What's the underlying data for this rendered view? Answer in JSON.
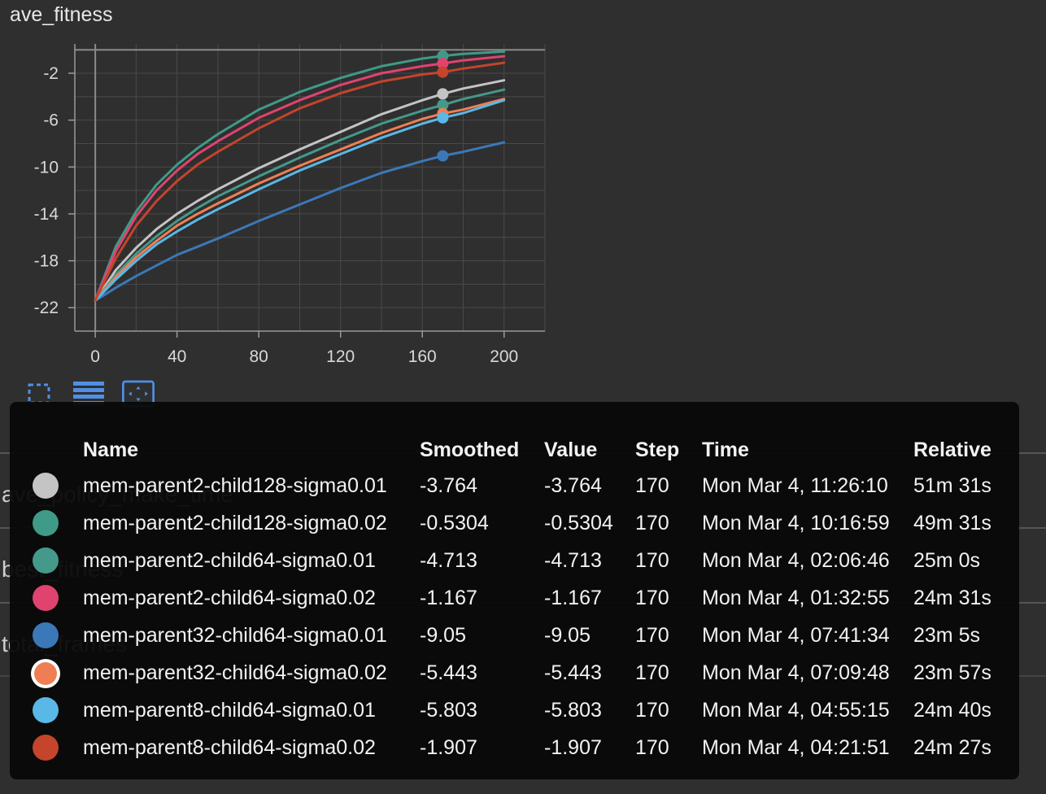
{
  "card": {
    "title": "ave_fitness"
  },
  "background_cards": [
    {
      "label": "ave_policy_make_time"
    },
    {
      "label": "best_fitness"
    },
    {
      "label": "total_frames"
    }
  ],
  "toolbar": {
    "fullscreen_icon": "fullscreen-icon",
    "log_scale_icon": "menu-lines-icon",
    "fit_domain_icon": "fit-domain-icon"
  },
  "table": {
    "headers": {
      "name": "Name",
      "smoothed": "Smoothed",
      "value": "Value",
      "step": "Step",
      "time": "Time",
      "relative": "Relative"
    },
    "rows": [
      {
        "color": "#c4c4c4",
        "name": "mem-parent2-child128-sigma0.01",
        "smoothed": "-3.764",
        "value": "-3.764",
        "step": "170",
        "time": "Mon Mar 4, 11:26:10",
        "relative": "51m 31s"
      },
      {
        "color": "#3f9a87",
        "name": "mem-parent2-child128-sigma0.02",
        "smoothed": "-0.5304",
        "value": "-0.5304",
        "step": "170",
        "time": "Mon Mar 4, 10:16:59",
        "relative": "49m 31s"
      },
      {
        "color": "#44998a",
        "name": "mem-parent2-child64-sigma0.01",
        "smoothed": "-4.713",
        "value": "-4.713",
        "step": "170",
        "time": "Mon Mar 4, 02:06:46",
        "relative": "25m 0s"
      },
      {
        "color": "#e0436f",
        "name": "mem-parent2-child64-sigma0.02",
        "smoothed": "-1.167",
        "value": "-1.167",
        "step": "170",
        "time": "Mon Mar 4, 01:32:55",
        "relative": "24m 31s"
      },
      {
        "color": "#3b78b8",
        "name": "mem-parent32-child64-sigma0.01",
        "smoothed": "-9.05",
        "value": "-9.05",
        "step": "170",
        "time": "Mon Mar 4, 07:41:34",
        "relative": "23m 5s"
      },
      {
        "color": "#f07e55",
        "name": "mem-parent32-child64-sigma0.02",
        "smoothed": "-5.443",
        "value": "-5.443",
        "step": "170",
        "time": "Mon Mar 4, 07:09:48",
        "relative": "23m 57s",
        "selected": true
      },
      {
        "color": "#5ab8e6",
        "name": "mem-parent8-child64-sigma0.01",
        "smoothed": "-5.803",
        "value": "-5.803",
        "step": "170",
        "time": "Mon Mar 4, 04:55:15",
        "relative": "24m 40s"
      },
      {
        "color": "#c4442c",
        "name": "mem-parent8-child64-sigma0.02",
        "smoothed": "-1.907",
        "value": "-1.907",
        "step": "170",
        "time": "Mon Mar 4, 04:21:51",
        "relative": "24m 27s"
      }
    ]
  },
  "chart_data": {
    "type": "line",
    "title": "ave_fitness",
    "xlabel": "",
    "ylabel": "",
    "xlim": [
      -10,
      220
    ],
    "ylim": [
      -24,
      0.5
    ],
    "x_ticks": [
      0,
      40,
      80,
      120,
      160,
      200
    ],
    "y_ticks": [
      -2,
      -6,
      -10,
      -14,
      -18,
      -22
    ],
    "grid": true,
    "highlight_step": 170,
    "x": [
      0,
      10,
      20,
      30,
      40,
      50,
      60,
      80,
      100,
      120,
      140,
      160,
      170,
      180,
      200
    ],
    "series": [
      {
        "color": "#c4c4c4",
        "values": [
          -21.4,
          -18.8,
          -16.9,
          -15.3,
          -14.0,
          -12.9,
          -11.9,
          -10.1,
          -8.5,
          -7.0,
          -5.5,
          -4.3,
          -3.764,
          -3.3,
          -2.6
        ]
      },
      {
        "color": "#3f9a87",
        "values": [
          -21.4,
          -16.8,
          -13.8,
          -11.5,
          -9.8,
          -8.4,
          -7.2,
          -5.1,
          -3.6,
          -2.4,
          -1.4,
          -0.75,
          -0.5304,
          -0.35,
          -0.15
        ]
      },
      {
        "color": "#44998a",
        "values": [
          -21.4,
          -19.2,
          -17.4,
          -15.9,
          -14.6,
          -13.5,
          -12.5,
          -10.8,
          -9.2,
          -7.7,
          -6.3,
          -5.2,
          -4.713,
          -4.2,
          -3.4
        ]
      },
      {
        "color": "#e0436f",
        "values": [
          -21.4,
          -17.2,
          -14.2,
          -12.0,
          -10.3,
          -8.9,
          -7.8,
          -5.8,
          -4.3,
          -3.0,
          -2.0,
          -1.4,
          -1.167,
          -0.9,
          -0.55
        ]
      },
      {
        "color": "#3b78b8",
        "values": [
          -21.4,
          -20.3,
          -19.3,
          -18.4,
          -17.5,
          -16.8,
          -16.1,
          -14.6,
          -13.2,
          -11.8,
          -10.5,
          -9.5,
          -9.05,
          -8.7,
          -7.9
        ]
      },
      {
        "color": "#f07e55",
        "values": [
          -21.4,
          -19.4,
          -17.7,
          -16.3,
          -15.0,
          -14.0,
          -13.1,
          -11.4,
          -9.9,
          -8.5,
          -7.1,
          -5.9,
          -5.443,
          -5.1,
          -4.2
        ]
      },
      {
        "color": "#5ab8e6",
        "values": [
          -21.4,
          -19.6,
          -18.0,
          -16.6,
          -15.5,
          -14.5,
          -13.6,
          -11.9,
          -10.3,
          -8.9,
          -7.5,
          -6.3,
          -5.803,
          -5.4,
          -4.3
        ]
      },
      {
        "color": "#c4442c",
        "values": [
          -21.4,
          -17.8,
          -15.0,
          -12.9,
          -11.2,
          -9.8,
          -8.7,
          -6.7,
          -5.0,
          -3.7,
          -2.7,
          -2.1,
          -1.907,
          -1.6,
          -1.1
        ]
      }
    ]
  }
}
